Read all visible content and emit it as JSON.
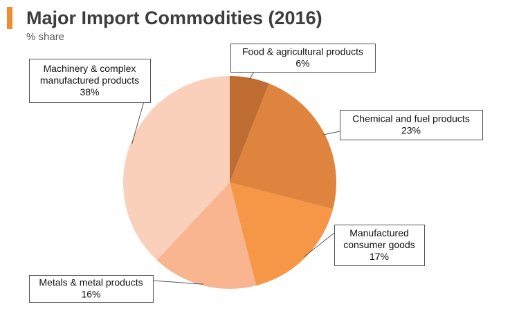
{
  "header": {
    "title": "Major Import Commodities (2016)",
    "subtitle": "% share",
    "accent_color": "#F28A2E"
  },
  "chart_data": {
    "type": "pie",
    "title": "Major Import Commodities (2016)",
    "subtitle": "% share",
    "unit": "%",
    "slices": [
      {
        "label_lines": [
          "Food & agricultural products"
        ],
        "value_label": "6%",
        "value": 6,
        "color": "#BE6C32"
      },
      {
        "label_lines": [
          "Chemical and fuel products"
        ],
        "value_label": "23%",
        "value": 23,
        "color": "#DE843E"
      },
      {
        "label_lines": [
          "Manufactured",
          "consumer goods"
        ],
        "value_label": "17%",
        "value": 17,
        "color": "#F59746"
      },
      {
        "label_lines": [
          "Metals & metal products"
        ],
        "value_label": "16%",
        "value": 16,
        "color": "#F8B590"
      },
      {
        "label_lines": [
          "Machinery & complex",
          "manufactured products"
        ],
        "value_label": "38%",
        "value": 38,
        "color": "#FBD0BA"
      }
    ]
  }
}
